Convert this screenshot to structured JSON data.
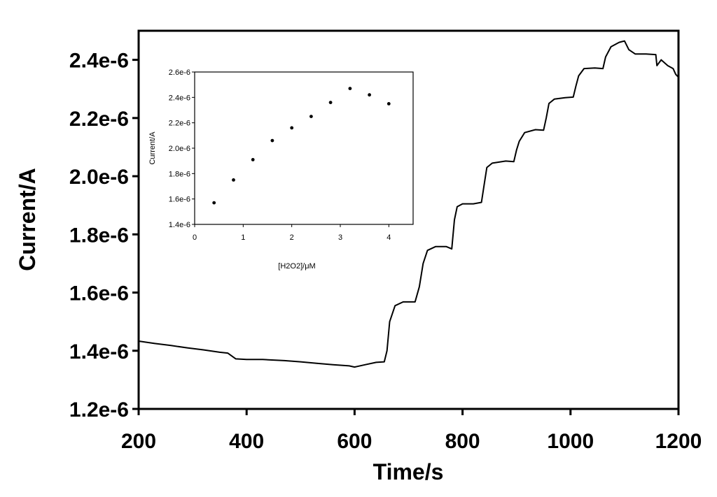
{
  "chart_data": [
    {
      "type": "line",
      "xlabel": "Time/s",
      "ylabel": "Current/A",
      "xlim": [
        200,
        1200
      ],
      "ylim": [
        1.2e-06,
        2.5e-06
      ],
      "x_ticks": [
        200,
        400,
        600,
        800,
        1000,
        1200
      ],
      "x_tick_labels": [
        "200",
        "400",
        "600",
        "800",
        "1000",
        "1200"
      ],
      "y_ticks": [
        1.2e-06,
        1.4e-06,
        1.6e-06,
        1.8e-06,
        2e-06,
        2.2e-06,
        2.4e-06
      ],
      "y_tick_labels": [
        "1.2e-6",
        "1.4e-6",
        "1.6e-6",
        "1.8e-6",
        "2.0e-6",
        "2.2e-6",
        "2.4e-6"
      ],
      "grid": false,
      "series": [
        {
          "color": "#000000",
          "x": [
            200,
            230,
            260,
            290,
            320,
            350,
            365,
            380,
            400,
            430,
            470,
            500,
            530,
            560,
            590,
            600,
            620,
            640,
            655,
            660,
            665,
            675,
            690,
            712,
            720,
            727,
            735,
            750,
            770,
            780,
            785,
            790,
            800,
            820,
            835,
            840,
            845,
            855,
            880,
            895,
            900,
            905,
            915,
            935,
            950,
            955,
            960,
            970,
            990,
            1005,
            1010,
            1015,
            1025,
            1045,
            1060,
            1065,
            1075,
            1090,
            1100,
            1108,
            1120,
            1140,
            1158,
            1160,
            1168,
            1180,
            1190,
            1195,
            1200
          ],
          "y": [
            1.433e-06,
            1.425e-06,
            1.418e-06,
            1.41e-06,
            1.403e-06,
            1.395e-06,
            1.392e-06,
            1.372e-06,
            1.37e-06,
            1.37e-06,
            1.366e-06,
            1.362e-06,
            1.357e-06,
            1.352e-06,
            1.348e-06,
            1.344e-06,
            1.352e-06,
            1.36e-06,
            1.362e-06,
            1.4e-06,
            1.5e-06,
            1.555e-06,
            1.568e-06,
            1.568e-06,
            1.62e-06,
            1.7e-06,
            1.745e-06,
            1.758e-06,
            1.758e-06,
            1.75e-06,
            1.85e-06,
            1.895e-06,
            1.905e-06,
            1.905e-06,
            1.91e-06,
            1.97e-06,
            2.03e-06,
            2.045e-06,
            2.052e-06,
            2.05e-06,
            2.09e-06,
            2.12e-06,
            2.15e-06,
            2.16e-06,
            2.158e-06,
            2.2e-06,
            2.25e-06,
            2.265e-06,
            2.27e-06,
            2.272e-06,
            2.31e-06,
            2.345e-06,
            2.37e-06,
            2.372e-06,
            2.37e-06,
            2.41e-06,
            2.445e-06,
            2.46e-06,
            2.465e-06,
            2.435e-06,
            2.42e-06,
            2.42e-06,
            2.418e-06,
            2.38e-06,
            2.4e-06,
            2.38e-06,
            2.37e-06,
            2.35e-06,
            2.34e-06
          ]
        }
      ]
    },
    {
      "type": "scatter",
      "xlabel": "[H2O2]/μM",
      "ylabel": "Current/A",
      "xlim": [
        0,
        4.5
      ],
      "ylim": [
        1.4e-06,
        2.6e-06
      ],
      "x_ticks": [
        0,
        1,
        2,
        3,
        4
      ],
      "x_tick_labels": [
        "0",
        "1",
        "2",
        "3",
        "4"
      ],
      "y_ticks": [
        1.4e-06,
        1.6e-06,
        1.8e-06,
        2e-06,
        2.2e-06,
        2.4e-06,
        2.6e-06
      ],
      "y_tick_labels": [
        "1.4e-6",
        "1.6e-6",
        "1.8e-6",
        "2.0e-6",
        "2.2e-6",
        "2.4e-6",
        "2.6e-6"
      ],
      "grid": false,
      "series": [
        {
          "color": "#000000",
          "x": [
            0.4,
            0.8,
            1.2,
            1.6,
            2.0,
            2.4,
            2.8,
            3.2,
            3.6,
            4.0
          ],
          "y": [
            1.57e-06,
            1.75e-06,
            1.91e-06,
            2.06e-06,
            2.16e-06,
            2.25e-06,
            2.36e-06,
            2.47e-06,
            2.42e-06,
            2.35e-06
          ]
        }
      ]
    }
  ]
}
